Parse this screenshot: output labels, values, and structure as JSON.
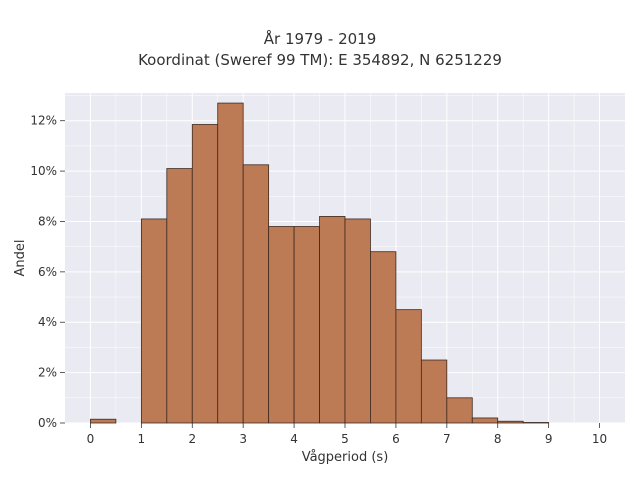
{
  "chart_data": {
    "type": "bar",
    "title": "År 1979 - 2019",
    "subtitle": "Koordinat (Sweref 99 TM): E 354892, N 6251229",
    "xlabel": "Vågperiod (s)",
    "ylabel": "Andel",
    "bin_width": 0.5,
    "bin_starts": [
      0,
      0.5,
      1,
      1.5,
      2,
      2.5,
      3,
      3.5,
      4,
      4.5,
      5,
      5.5,
      6,
      6.5,
      7,
      7.5,
      8,
      8.5,
      9,
      9.5
    ],
    "values": [
      0.15,
      0,
      8.1,
      10.1,
      11.85,
      12.7,
      10.25,
      7.8,
      7.8,
      8.2,
      8.1,
      6.8,
      4.5,
      2.5,
      1.0,
      0.2,
      0.07,
      0.02,
      0,
      0
    ],
    "xlim": [
      -0.5,
      10.5
    ],
    "ylim": [
      0,
      13.1
    ],
    "x_ticks": [
      0,
      1,
      2,
      3,
      4,
      5,
      6,
      7,
      8,
      9,
      10
    ],
    "x_tick_labels": [
      "0",
      "1",
      "2",
      "3",
      "4",
      "5",
      "6",
      "7",
      "8",
      "9",
      "10"
    ],
    "y_ticks": [
      0,
      2,
      4,
      6,
      8,
      10,
      12
    ],
    "y_tick_labels": [
      "0%",
      "2%",
      "4%",
      "6%",
      "8%",
      "10%",
      "12%"
    ],
    "grid": true,
    "colors": {
      "bar_fill": "#bc7a55",
      "bar_edge": "#3d2a1f",
      "plot_bg": "#eaeaf2",
      "grid": "#ffffff",
      "text": "#333333"
    }
  }
}
